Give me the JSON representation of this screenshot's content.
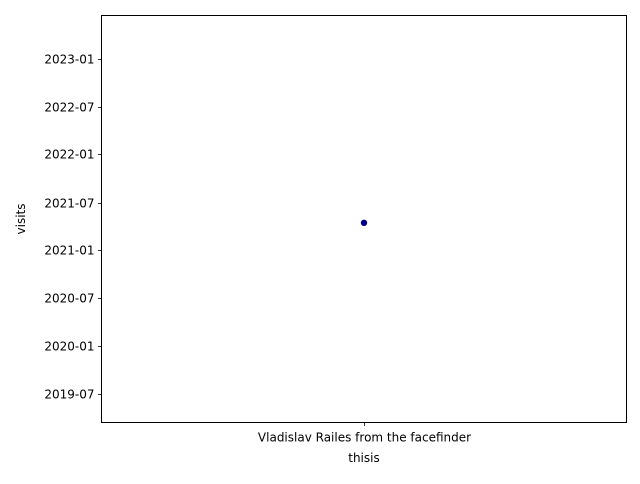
{
  "chart_data": {
    "type": "scatter",
    "title": "",
    "xlabel": "thisis",
    "ylabel": "visits",
    "x_categories": [
      "Vladislav Railes from the facefinder"
    ],
    "points": [
      {
        "x": "Vladislav Railes from the facefinder",
        "y": "2021-04-15"
      }
    ],
    "y_axis": {
      "scale": "date",
      "range": [
        "2019-03-15",
        "2023-06-15"
      ],
      "ticks": [
        {
          "value": "2019-07-01",
          "label": "2019-07"
        },
        {
          "value": "2020-01-01",
          "label": "2020-01"
        },
        {
          "value": "2020-07-01",
          "label": "2020-07"
        },
        {
          "value": "2021-01-01",
          "label": "2021-01"
        },
        {
          "value": "2021-07-01",
          "label": "2021-07"
        },
        {
          "value": "2022-01-01",
          "label": "2022-01"
        },
        {
          "value": "2022-07-01",
          "label": "2022-07"
        },
        {
          "value": "2023-01-01",
          "label": "2023-01"
        }
      ]
    },
    "grid": false,
    "legend": "none",
    "colors": {
      "marker": "#00008b",
      "axes": "#000000"
    }
  }
}
